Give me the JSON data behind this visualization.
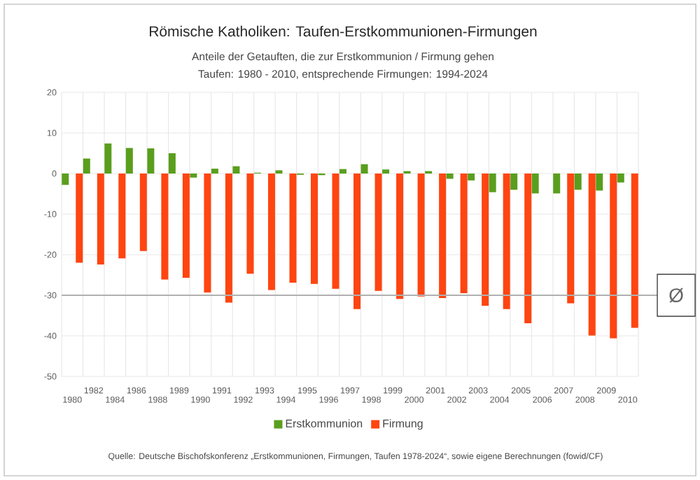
{
  "chart_data": {
    "type": "bar",
    "title": "Römische Katholiken: Taufen-Erstkommunionen-Firmungen",
    "subtitle": [
      "Anteile der Getauften, die zur Erstkommunion / Firmung gehen",
      "Taufen: 1980 - 2010, entsprechende Firmungen: 1994-2024"
    ],
    "categories": [
      "1980",
      "1982",
      "1984",
      "1986",
      "1988",
      "1989",
      "1990",
      "1991",
      "1992",
      "1993",
      "1994",
      "1995",
      "1996",
      "1997",
      "1998",
      "1999",
      "2000",
      "2001",
      "2002",
      "2003",
      "2004",
      "2005",
      "2006",
      "2007",
      "2008",
      "2009",
      "2010"
    ],
    "series": [
      {
        "name": "Erstkommunion",
        "color": "#5a9e1e",
        "values": [
          -2.8,
          3.7,
          7.4,
          6.3,
          6.2,
          5.0,
          -1.0,
          1.2,
          1.8,
          0.2,
          0.8,
          -0.3,
          -0.4,
          1.1,
          2.3,
          1.0,
          0.6,
          0.6,
          -1.3,
          -1.7,
          -4.6,
          -4.0,
          -4.9,
          -4.9,
          -4.0,
          -4.2,
          -2.2
        ]
      },
      {
        "name": "Firmung",
        "color": "#ff4511",
        "values": [
          -22.0,
          -22.4,
          -20.9,
          -19.1,
          -26.1,
          -25.7,
          -29.3,
          -31.8,
          -24.7,
          -28.7,
          -26.9,
          -27.2,
          -28.4,
          -33.4,
          -28.9,
          -30.9,
          -30.3,
          -30.7,
          -29.5,
          -32.6,
          -33.4,
          -36.9,
          null,
          -32.0,
          -39.9,
          -40.6,
          -38.0
        ]
      }
    ],
    "ylim": [
      -50,
      20
    ],
    "yticks": [
      -50,
      -40,
      -30,
      -20,
      -10,
      0,
      10,
      20
    ],
    "grid": true,
    "legend": "bottom",
    "ref_lines": [
      {
        "axis": "y",
        "value": -30,
        "label": "Ø",
        "color": "#b0b0b0"
      }
    ],
    "annotations": [
      "Quelle: Deutsche Bischofskonferenz „Erstkommunionen, Firmungen, Taufen 1978-2024“, sowie eigene Berechnungen (fowid/CF)"
    ]
  }
}
